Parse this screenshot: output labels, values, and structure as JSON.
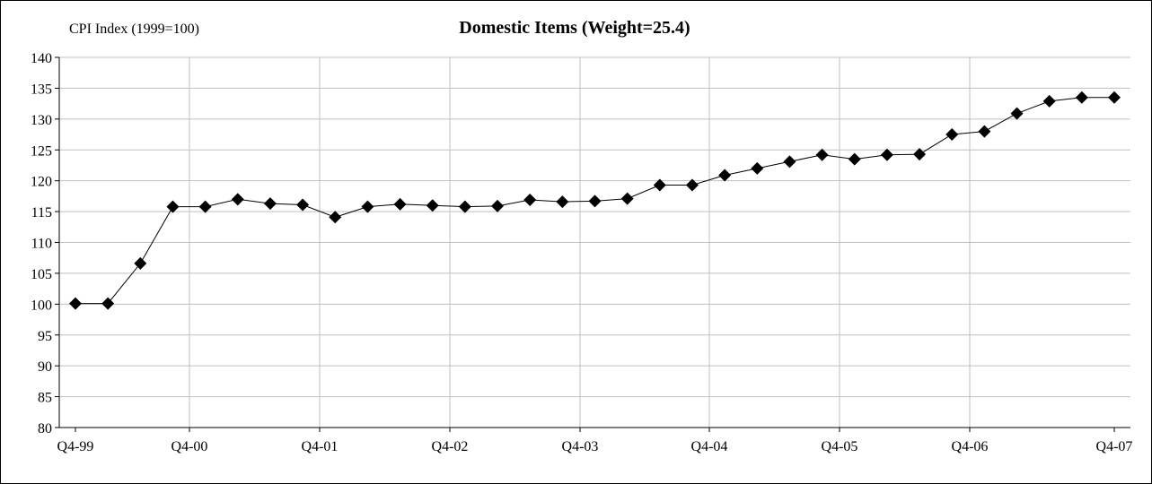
{
  "chart_data": {
    "type": "line",
    "title": "Domestic Items (Weight=25.4)",
    "ylabel": "CPI Index (1999=100)",
    "xlabel": "",
    "ylim": [
      80,
      140
    ],
    "yticks": [
      80,
      85,
      90,
      95,
      100,
      105,
      110,
      115,
      120,
      125,
      130,
      135,
      140
    ],
    "xticks": [
      "Q4-99",
      "Q4-00",
      "Q4-01",
      "Q4-02",
      "Q4-03",
      "Q4-04",
      "Q4-05",
      "Q4-06",
      "Q4-07"
    ],
    "grid": true,
    "legend": "none",
    "series": [
      {
        "values": [
          100.1,
          100.1,
          106.6,
          115.8,
          115.8,
          117.0,
          116.3,
          116.1,
          114.1,
          115.8,
          116.2,
          116.0,
          115.8,
          115.9,
          116.9,
          116.6,
          116.7,
          117.1,
          119.3,
          119.3,
          120.9,
          122.0,
          123.1,
          124.2,
          123.5,
          124.2,
          124.3,
          127.5,
          128.0,
          130.9,
          132.9,
          133.5,
          133.5
        ]
      }
    ]
  },
  "colors": {
    "line": "#000000",
    "marker": "#000000",
    "grid": "#bfbfbf",
    "axis": "#000000"
  }
}
